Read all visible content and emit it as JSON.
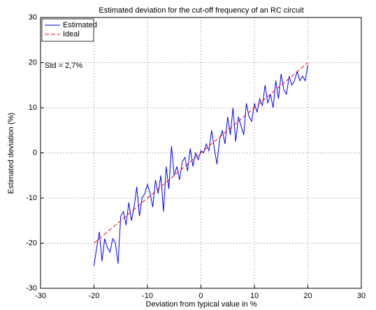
{
  "chart_data": {
    "type": "line",
    "title": "Estimated deviation for the cut-off frequency of an RC circuit",
    "xlabel": "Deviation from typical value in %",
    "ylabel": "Estimated deviation (%)",
    "annotation": "Std = 2,7%",
    "xlim": [
      -30,
      30
    ],
    "ylim": [
      -30,
      30
    ],
    "xticks": [
      -30,
      -20,
      -10,
      0,
      10,
      20,
      30
    ],
    "yticks": [
      -30,
      -20,
      -10,
      0,
      10,
      20,
      30
    ],
    "grid": true,
    "legend": "upper-left",
    "series": [
      {
        "name": "Estimated",
        "color": "#0000ff",
        "dash": "solid",
        "x": [
          -20,
          -19.5,
          -19,
          -18.5,
          -18,
          -17.5,
          -17,
          -16.5,
          -16,
          -15.5,
          -15,
          -14.5,
          -14,
          -13.5,
          -13,
          -12.5,
          -12,
          -11.5,
          -11,
          -10.5,
          -10,
          -9.5,
          -9,
          -8.5,
          -8,
          -7.5,
          -7,
          -6.5,
          -6,
          -5.5,
          -5,
          -4.5,
          -4,
          -3.5,
          -3,
          -2.5,
          -2,
          -1.5,
          -1,
          -0.5,
          0,
          0.5,
          1,
          1.5,
          2,
          2.5,
          3,
          3.5,
          4,
          4.5,
          5,
          5.5,
          6,
          6.5,
          7,
          7.5,
          8,
          8.5,
          9,
          9.5,
          10,
          10.5,
          11,
          11.5,
          12,
          12.5,
          13,
          13.5,
          14,
          14.5,
          15,
          15.5,
          16,
          16.5,
          17,
          17.5,
          18,
          18.5,
          19,
          19.5,
          20
        ],
        "values": [
          -25,
          -21,
          -17.5,
          -24,
          -19,
          -21,
          -22,
          -19,
          -20,
          -24.5,
          -14,
          -13,
          -16,
          -11,
          -15,
          -12,
          -7.5,
          -14,
          -10,
          -9,
          -7,
          -9,
          -12,
          -6,
          -9,
          -5,
          -13,
          -3,
          -8,
          1.5,
          -5,
          -3,
          -6,
          -2,
          -1,
          -4,
          1,
          -3,
          0,
          -1.5,
          0.5,
          0,
          2,
          0.5,
          5,
          1,
          -2.5,
          3,
          5,
          2,
          8,
          4,
          10,
          2.5,
          8,
          6,
          4,
          11,
          8,
          7,
          11,
          9,
          12,
          10.5,
          15,
          11,
          13,
          10,
          16,
          12,
          17.5,
          14,
          13,
          17,
          15,
          16,
          18,
          16,
          17,
          16,
          19.5
        ]
      },
      {
        "name": "Ideal",
        "color": "#ff0000",
        "dash": "dashed",
        "x": [
          -20,
          20
        ],
        "values": [
          -20,
          20
        ]
      }
    ]
  }
}
